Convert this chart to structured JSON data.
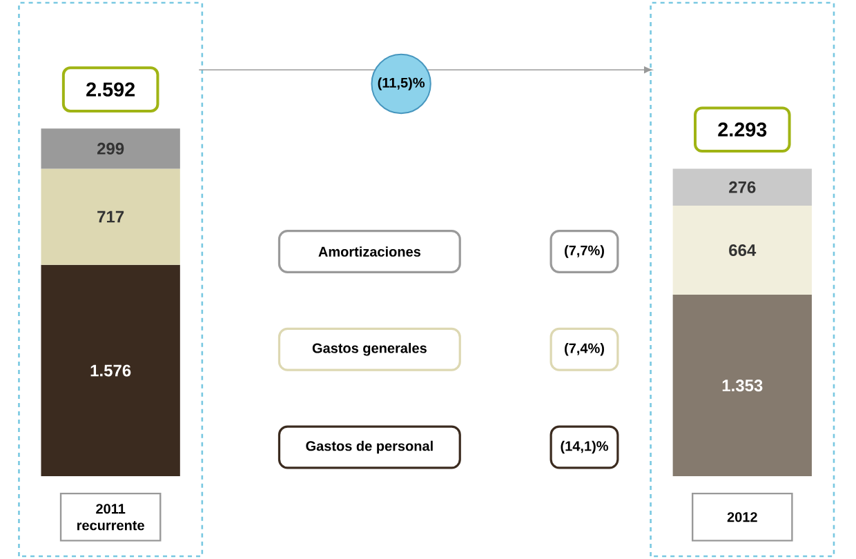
{
  "chart_data": {
    "type": "bar",
    "stacked": true,
    "categories": [
      "2011 recurrente",
      "2012"
    ],
    "series": [
      {
        "name": "Gastos de personal",
        "colors": [
          "#3b2b1f",
          "#857a6e"
        ],
        "values": [
          1576,
          1353
        ],
        "value_labels": [
          "1.576",
          "1.353"
        ]
      },
      {
        "name": "Gastos generales",
        "colors": [
          "#ddd8b2",
          "#f1eedc"
        ],
        "values": [
          717,
          664
        ],
        "value_labels": [
          "717",
          "664"
        ]
      },
      {
        "name": "Amortizaciones",
        "colors": [
          "#9a9a9a",
          "#c9c9c9"
        ],
        "values": [
          299,
          276
        ],
        "value_labels": [
          "299",
          "276"
        ]
      }
    ],
    "totals": [
      "2.592",
      "2.293"
    ],
    "annotations": [
      "(11,5)%",
      "(14,1)%",
      "(7,4%)",
      "(7,7%)"
    ]
  }
}
